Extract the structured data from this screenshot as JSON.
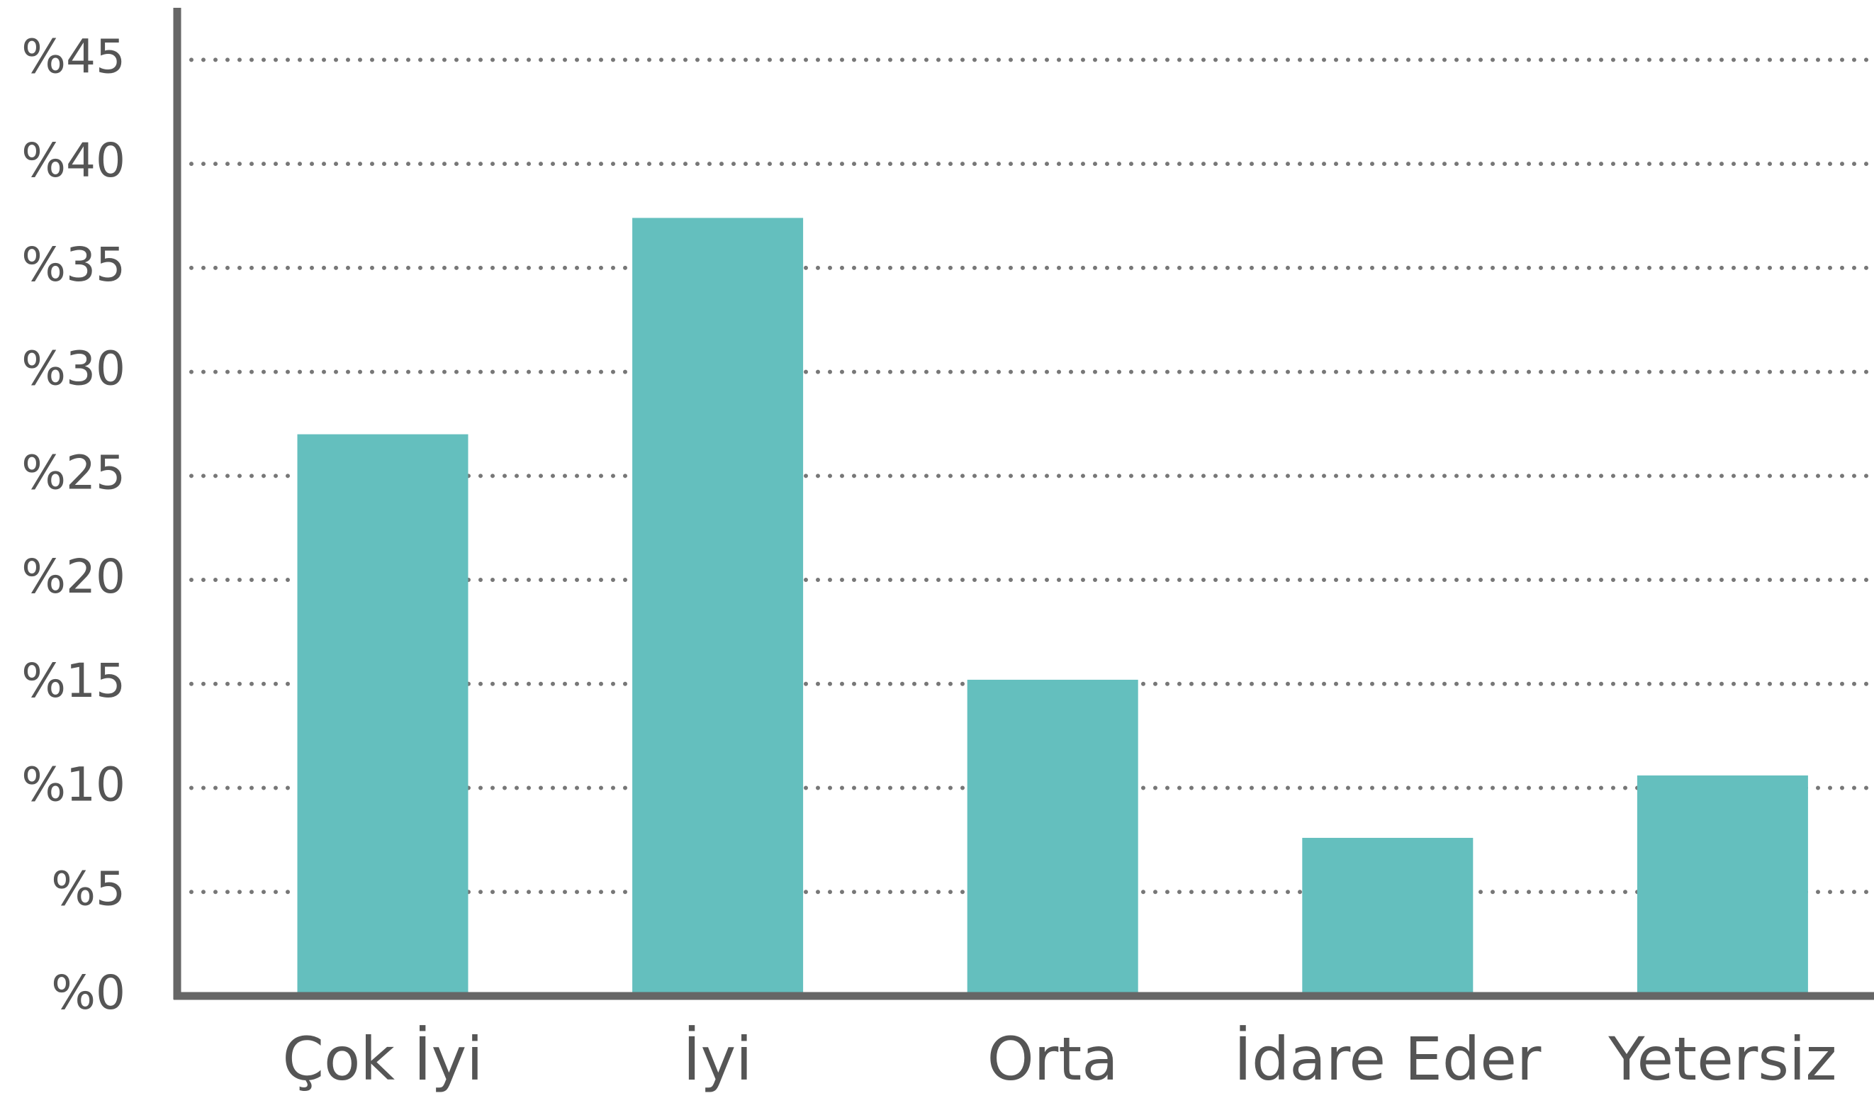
{
  "chart_data": {
    "type": "bar",
    "categories": [
      "Çok İyi",
      "İyi",
      "Orta",
      "İdare Eder",
      "Yetersiz"
    ],
    "values": [
      27.0,
      37.4,
      15.2,
      7.6,
      10.6
    ],
    "color": "#64bfbe",
    "ylim": [
      0,
      47.5
    ],
    "yticks": [
      {
        "value": 0,
        "label": "%0"
      },
      {
        "value": 5,
        "label": "%5"
      },
      {
        "value": 10,
        "label": "%10"
      },
      {
        "value": 15,
        "label": "%15"
      },
      {
        "value": 20,
        "label": "%20"
      },
      {
        "value": 25,
        "label": "%25"
      },
      {
        "value": 30,
        "label": "%30"
      },
      {
        "value": 35,
        "label": "%35"
      },
      {
        "value": 40,
        "label": "%40"
      },
      {
        "value": 45,
        "label": "%45"
      }
    ],
    "grid": true
  }
}
